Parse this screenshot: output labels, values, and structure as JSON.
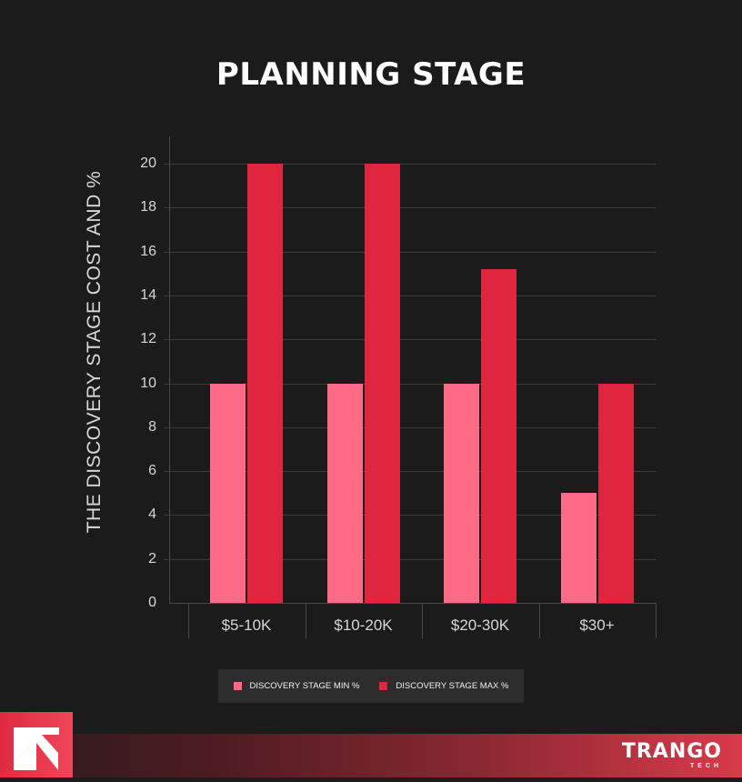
{
  "title": "PLANNING STAGE",
  "chart_data": {
    "type": "bar",
    "title": "PLANNING STAGE",
    "xlabel": "",
    "ylabel": "THE DISCOVERY STAGE COST AND %",
    "categories": [
      "$5-10K",
      "$10-20K",
      "$20-30K",
      "$30+"
    ],
    "series": [
      {
        "name": "DISCOVERY STAGE MIN %",
        "color": "#ff6b86",
        "values": [
          10,
          10,
          10,
          5
        ]
      },
      {
        "name": "DISCOVERY STAGE MAX %",
        "color": "#e0263f",
        "values": [
          20,
          20,
          15.2,
          10
        ]
      }
    ],
    "ylim": [
      0,
      21
    ],
    "yticks": [
      0,
      2,
      4,
      6,
      8,
      10,
      12,
      14,
      16,
      18,
      20
    ],
    "grid": true,
    "legend_position": "bottom"
  },
  "legend": {
    "items": [
      {
        "label": "DISCOVERY STAGE MIN %",
        "color": "#ff6b86"
      },
      {
        "label": "DISCOVERY STAGE MAX %",
        "color": "#e0263f"
      }
    ]
  },
  "footer": {
    "brand_name": "TRANGO",
    "brand_sub": "TECH",
    "logo_icon": "arrow-up-left-icon"
  }
}
